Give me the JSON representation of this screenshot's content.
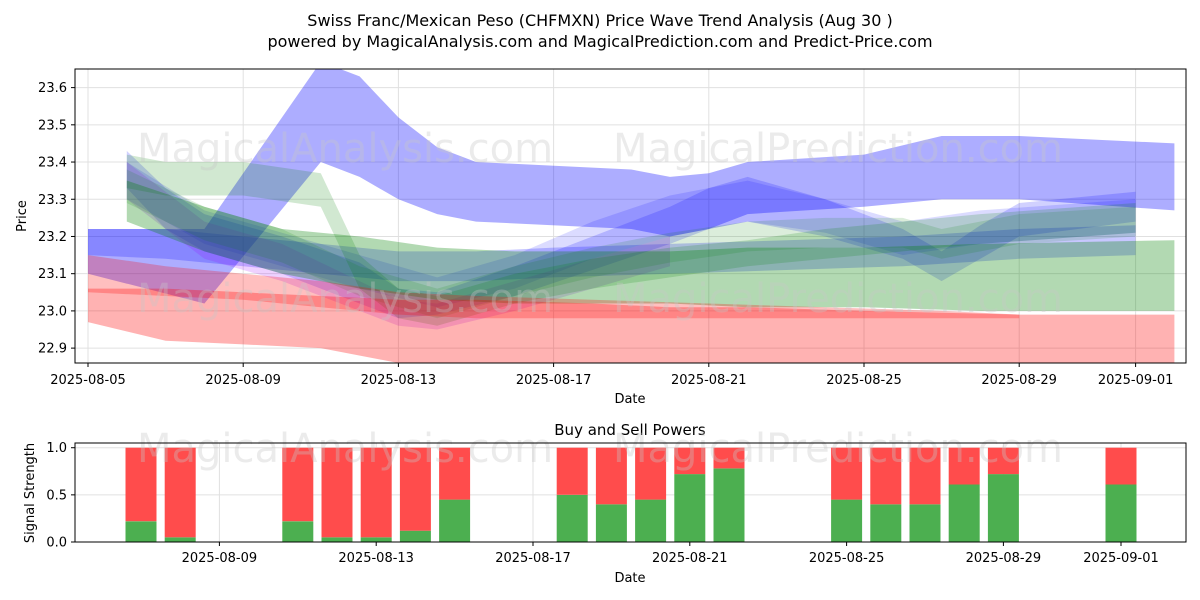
{
  "title_line1": "Swiss Franc/Mexican Peso (CHFMXN) Price Wave Trend Analysis (Aug 30 )",
  "title_line2": "powered by MagicalAnalysis.com and MagicalPrediction.com and Predict-Price.com",
  "watermarks": [
    "MagicalAnalysis.com",
    "MagicalPrediction.com"
  ],
  "colors": {
    "blue": "#0000ff",
    "green": "#008000",
    "red": "#ff0000",
    "purple": "#a000ff",
    "buy": "#4caf50",
    "sell": "#ff4c4c"
  },
  "chart_data": [
    {
      "type": "area",
      "title": "",
      "xlabel": "Date",
      "ylabel": "Price",
      "ylim": [
        22.86,
        23.65
      ],
      "yticks": [
        22.9,
        23.0,
        23.1,
        23.2,
        23.3,
        23.4,
        23.5,
        23.6
      ],
      "xticks": [
        "2025-08-05",
        "2025-08-09",
        "2025-08-13",
        "2025-08-17",
        "2025-08-21",
        "2025-08-25",
        "2025-08-29",
        "2025-09-01"
      ],
      "grid": true,
      "series": [
        {
          "color": "blue",
          "opacity": 0.32,
          "x": [
            "2025-08-05",
            "2025-08-08",
            "2025-08-11",
            "2025-08-12",
            "2025-08-13",
            "2025-08-14",
            "2025-08-15",
            "2025-08-19",
            "2025-08-20",
            "2025-08-21",
            "2025-08-22",
            "2025-08-25",
            "2025-08-27",
            "2025-08-29",
            "2025-09-02"
          ],
          "upper": [
            23.22,
            23.22,
            23.67,
            23.63,
            23.52,
            23.44,
            23.4,
            23.38,
            23.36,
            23.37,
            23.4,
            23.42,
            23.47,
            23.47,
            23.45
          ],
          "lower": [
            23.1,
            23.02,
            23.4,
            23.36,
            23.3,
            23.26,
            23.24,
            23.22,
            23.2,
            23.22,
            23.26,
            23.28,
            23.3,
            23.3,
            23.27
          ]
        },
        {
          "color": "blue",
          "opacity": 0.18,
          "x": [
            "2025-08-06",
            "2025-08-07",
            "2025-08-08",
            "2025-08-10",
            "2025-08-12",
            "2025-08-13",
            "2025-08-14",
            "2025-08-16",
            "2025-08-18",
            "2025-08-20",
            "2025-08-21",
            "2025-08-22",
            "2025-08-24",
            "2025-08-26",
            "2025-08-27",
            "2025-08-28",
            "2025-08-29",
            "2025-09-01"
          ],
          "upper": [
            23.43,
            23.33,
            23.26,
            23.2,
            23.13,
            23.06,
            23.05,
            23.12,
            23.2,
            23.28,
            23.33,
            23.36,
            23.3,
            23.22,
            23.16,
            23.23,
            23.29,
            23.32
          ],
          "lower": [
            23.33,
            23.22,
            23.16,
            23.1,
            23.02,
            22.98,
            22.99,
            23.04,
            23.11,
            23.18,
            23.22,
            23.24,
            23.2,
            23.14,
            23.08,
            23.14,
            23.2,
            23.24
          ]
        },
        {
          "color": "blue",
          "opacity": 0.14,
          "x": [
            "2025-08-06",
            "2025-08-08",
            "2025-08-10",
            "2025-08-12",
            "2025-08-14",
            "2025-08-16",
            "2025-08-18",
            "2025-08-20",
            "2025-08-22",
            "2025-08-24",
            "2025-08-26",
            "2025-08-28",
            "2025-09-01"
          ],
          "upper": [
            23.4,
            23.27,
            23.21,
            23.15,
            23.09,
            23.15,
            23.24,
            23.31,
            23.35,
            23.3,
            23.24,
            23.27,
            23.3
          ],
          "lower": [
            23.3,
            23.18,
            23.12,
            23.06,
            23.01,
            23.06,
            23.14,
            23.2,
            23.24,
            23.21,
            23.15,
            23.18,
            23.21
          ]
        },
        {
          "color": "blue",
          "opacity": 0.22,
          "x": [
            "2025-08-05",
            "2025-08-07",
            "2025-08-09",
            "2025-08-11",
            "2025-08-13",
            "2025-08-15",
            "2025-08-17",
            "2025-08-20",
            "2025-08-23",
            "2025-08-26",
            "2025-08-29",
            "2025-09-01"
          ],
          "upper": [
            23.22,
            23.22,
            23.2,
            23.18,
            23.16,
            23.16,
            23.17,
            23.18,
            23.19,
            23.2,
            23.22,
            23.23
          ],
          "lower": [
            23.15,
            23.14,
            23.12,
            23.1,
            23.08,
            23.08,
            23.09,
            23.1,
            23.11,
            23.12,
            23.14,
            23.15
          ]
        },
        {
          "color": "purple",
          "opacity": 0.18,
          "x": [
            "2025-08-06",
            "2025-08-08",
            "2025-08-10",
            "2025-08-12",
            "2025-08-13",
            "2025-08-14",
            "2025-08-16",
            "2025-08-18",
            "2025-08-20"
          ],
          "upper": [
            23.4,
            23.24,
            23.18,
            23.08,
            23.03,
            23.02,
            23.08,
            23.14,
            23.2
          ],
          "lower": [
            23.3,
            23.14,
            23.08,
            23.0,
            22.96,
            22.95,
            23.0,
            23.06,
            23.12
          ]
        },
        {
          "color": "green",
          "opacity": 0.3,
          "x": [
            "2025-08-06",
            "2025-08-08",
            "2025-08-10",
            "2025-08-12",
            "2025-08-14",
            "2025-08-16",
            "2025-08-18",
            "2025-08-20",
            "2025-08-22",
            "2025-08-25",
            "2025-08-28",
            "2025-09-02"
          ],
          "upper": [
            23.35,
            23.28,
            23.22,
            23.2,
            23.17,
            23.16,
            23.16,
            23.16,
            23.17,
            23.17,
            23.18,
            23.19
          ],
          "lower": [
            23.24,
            23.16,
            23.1,
            23.06,
            23.03,
            23.02,
            23.02,
            23.02,
            23.01,
            23.01,
            23.0,
            23.0
          ]
        },
        {
          "color": "green",
          "opacity": 0.18,
          "x": [
            "2025-08-06",
            "2025-08-07",
            "2025-08-09",
            "2025-08-11",
            "2025-08-12",
            "2025-08-13",
            "2025-08-14",
            "2025-08-16",
            "2025-08-18",
            "2025-08-20",
            "2025-08-22",
            "2025-08-24",
            "2025-08-26",
            "2025-08-28",
            "2025-09-01"
          ],
          "upper": [
            23.42,
            23.4,
            23.4,
            23.37,
            23.15,
            23.06,
            23.04,
            23.1,
            23.14,
            23.17,
            23.19,
            23.22,
            23.24,
            23.26,
            23.29
          ],
          "lower": [
            23.33,
            23.31,
            23.31,
            23.28,
            23.06,
            22.98,
            22.96,
            23.02,
            23.06,
            23.09,
            23.12,
            23.14,
            23.16,
            23.18,
            23.21
          ]
        },
        {
          "color": "green",
          "opacity": 0.14,
          "x": [
            "2025-08-06",
            "2025-08-08",
            "2025-08-10",
            "2025-08-12",
            "2025-08-14",
            "2025-08-16",
            "2025-08-18",
            "2025-08-20",
            "2025-08-22",
            "2025-08-24",
            "2025-08-26",
            "2025-08-27",
            "2025-08-29",
            "2025-09-01"
          ],
          "upper": [
            23.38,
            23.28,
            23.22,
            23.12,
            23.06,
            23.12,
            23.17,
            23.21,
            23.24,
            23.25,
            23.25,
            23.22,
            23.26,
            23.28
          ],
          "lower": [
            23.29,
            23.19,
            23.13,
            23.04,
            22.98,
            23.04,
            23.09,
            23.13,
            23.16,
            23.17,
            23.17,
            23.14,
            23.18,
            23.2
          ]
        },
        {
          "color": "red",
          "opacity": 0.3,
          "x": [
            "2025-08-05",
            "2025-08-07",
            "2025-08-09",
            "2025-08-11",
            "2025-08-13",
            "2025-08-15",
            "2025-08-18",
            "2025-08-20",
            "2025-08-22",
            "2025-08-25",
            "2025-08-29",
            "2025-09-02"
          ],
          "upper": [
            23.06,
            23.06,
            23.05,
            23.04,
            23.03,
            23.03,
            23.02,
            23.01,
            23.01,
            23.0,
            22.99,
            22.99
          ],
          "lower": [
            22.97,
            22.92,
            22.91,
            22.9,
            22.86,
            22.83,
            22.82,
            22.8,
            22.8,
            22.8,
            22.79,
            22.79
          ]
        },
        {
          "color": "red",
          "opacity": 0.25,
          "x": [
            "2025-08-05",
            "2025-08-07",
            "2025-08-09",
            "2025-08-11",
            "2025-08-13",
            "2025-08-15",
            "2025-08-18",
            "2025-08-21",
            "2025-08-24",
            "2025-08-27",
            "2025-08-29"
          ],
          "upper": [
            23.15,
            23.12,
            23.1,
            23.08,
            23.05,
            23.04,
            23.03,
            23.02,
            23.01,
            23.0,
            22.99
          ],
          "lower": [
            23.05,
            23.04,
            23.03,
            23.01,
            22.99,
            22.98,
            22.98,
            22.98,
            22.98,
            22.98,
            22.98
          ]
        }
      ]
    },
    {
      "type": "bar",
      "title": "Buy and Sell Powers",
      "xlabel": "Date",
      "ylabel": "Signal Strength",
      "ylim": [
        0,
        1.05
      ],
      "yticks": [
        0.0,
        0.5,
        1.0
      ],
      "xticks": [
        "2025-08-09",
        "2025-08-13",
        "2025-08-17",
        "2025-08-21",
        "2025-08-25",
        "2025-08-29",
        "2025-09-01"
      ],
      "x": [
        "2025-08-07",
        "2025-08-08",
        "2025-08-11",
        "2025-08-12",
        "2025-08-13",
        "2025-08-14",
        "2025-08-15",
        "2025-08-18",
        "2025-08-19",
        "2025-08-20",
        "2025-08-21",
        "2025-08-22",
        "2025-08-25",
        "2025-08-26",
        "2025-08-27",
        "2025-08-28",
        "2025-08-29",
        "2025-09-01"
      ],
      "series": [
        {
          "name": "buy",
          "color": "buy",
          "values": [
            0.22,
            0.05,
            0.22,
            0.05,
            0.05,
            0.12,
            0.45,
            0.5,
            0.4,
            0.45,
            0.72,
            0.78,
            0.45,
            0.4,
            0.4,
            0.61,
            0.72,
            0.61
          ]
        },
        {
          "name": "sell",
          "color": "sell",
          "values": [
            0.78,
            0.95,
            0.78,
            0.95,
            0.95,
            0.88,
            0.55,
            0.5,
            0.6,
            0.55,
            0.28,
            0.22,
            0.55,
            0.6,
            0.6,
            0.39,
            0.28,
            0.39
          ]
        }
      ]
    }
  ]
}
